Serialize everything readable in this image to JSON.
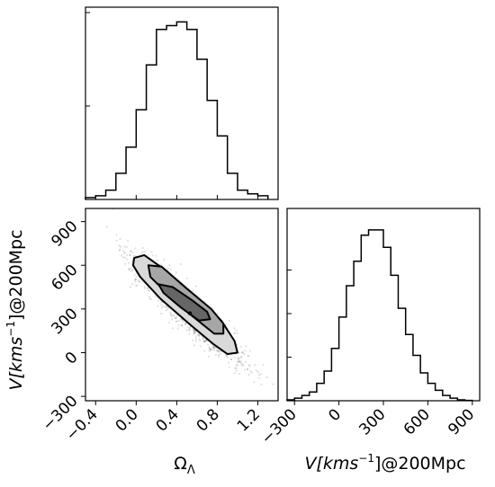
{
  "chart_data": [
    {
      "type": "histogram",
      "panel": "top-left",
      "x_range": [
        -0.5,
        1.4
      ],
      "bins": [
        -0.5,
        -0.4,
        -0.3,
        -0.2,
        -0.1,
        0.0,
        0.1,
        0.2,
        0.3,
        0.4,
        0.5,
        0.6,
        0.7,
        0.8,
        0.9,
        1.0,
        1.1,
        1.2,
        1.3
      ],
      "counts": [
        1,
        2,
        5,
        14,
        28,
        48,
        72,
        91,
        93,
        95,
        91,
        75,
        53,
        34,
        14,
        5,
        3,
        2
      ],
      "y_max": 100
    },
    {
      "type": "scatter",
      "panel": "bottom-left",
      "xlabel": "Ω",
      "xlabel_sub": "Λ",
      "ylabel": "V[kms",
      "ylabel_sup": "−1",
      "ylabel_rest": "]@200Mpc",
      "x_range": [
        -0.5,
        1.4
      ],
      "y_range": [
        -330,
        990
      ],
      "x_ticks": [
        -0.4,
        0.0,
        0.4,
        0.8,
        1.2
      ],
      "x_tick_labels": [
        "−0.4",
        "0.0",
        "0.4",
        "0.8",
        "1.2"
      ],
      "y_ticks": [
        -300,
        0,
        300,
        600,
        900
      ],
      "y_tick_labels": [
        "−300",
        "0",
        "300",
        "600",
        "900"
      ],
      "mean_point": [
        0.53,
        270
      ],
      "contours": [
        [
          [
            -0.02,
            650
          ],
          [
            0.08,
            670
          ],
          [
            0.3,
            560
          ],
          [
            0.6,
            380
          ],
          [
            0.84,
            220
          ],
          [
            0.97,
            80
          ],
          [
            1.0,
            0
          ],
          [
            0.9,
            -10
          ],
          [
            0.76,
            60
          ],
          [
            0.52,
            200
          ],
          [
            0.24,
            370
          ],
          [
            0.04,
            520
          ],
          [
            -0.03,
            600
          ]
        ],
        [
          [
            0.12,
            600
          ],
          [
            0.25,
            590
          ],
          [
            0.5,
            440
          ],
          [
            0.74,
            300
          ],
          [
            0.86,
            200
          ],
          [
            0.86,
            130
          ],
          [
            0.77,
            130
          ],
          [
            0.52,
            270
          ],
          [
            0.3,
            410
          ],
          [
            0.14,
            520
          ]
        ],
        [
          [
            0.22,
            470
          ],
          [
            0.36,
            450
          ],
          [
            0.55,
            360
          ],
          [
            0.7,
            280
          ],
          [
            0.73,
            230
          ],
          [
            0.62,
            220
          ],
          [
            0.44,
            310
          ],
          [
            0.27,
            410
          ]
        ]
      ]
    },
    {
      "type": "histogram",
      "panel": "bottom-right",
      "xlabel": "V[kms",
      "xlabel_sup": "−1",
      "xlabel_rest": "]@200Mpc",
      "x_range": [
        -350,
        950
      ],
      "x_ticks": [
        -300,
        0,
        300,
        600,
        900
      ],
      "x_tick_labels": [
        "−300",
        "0",
        "300",
        "600",
        "900"
      ],
      "bins": [
        -350,
        -300,
        -250,
        -200,
        -150,
        -100,
        -50,
        0,
        50,
        100,
        150,
        200,
        250,
        300,
        350,
        400,
        450,
        500,
        550,
        600,
        650,
        700,
        750,
        800,
        850,
        900
      ],
      "counts": [
        0.5,
        1.5,
        3,
        5,
        10,
        17,
        30,
        48,
        66,
        80,
        95,
        98,
        98,
        88,
        72,
        53,
        38,
        26,
        16,
        10,
        6,
        3,
        1.5,
        0.5,
        0.2
      ],
      "y_max": 100
    }
  ]
}
